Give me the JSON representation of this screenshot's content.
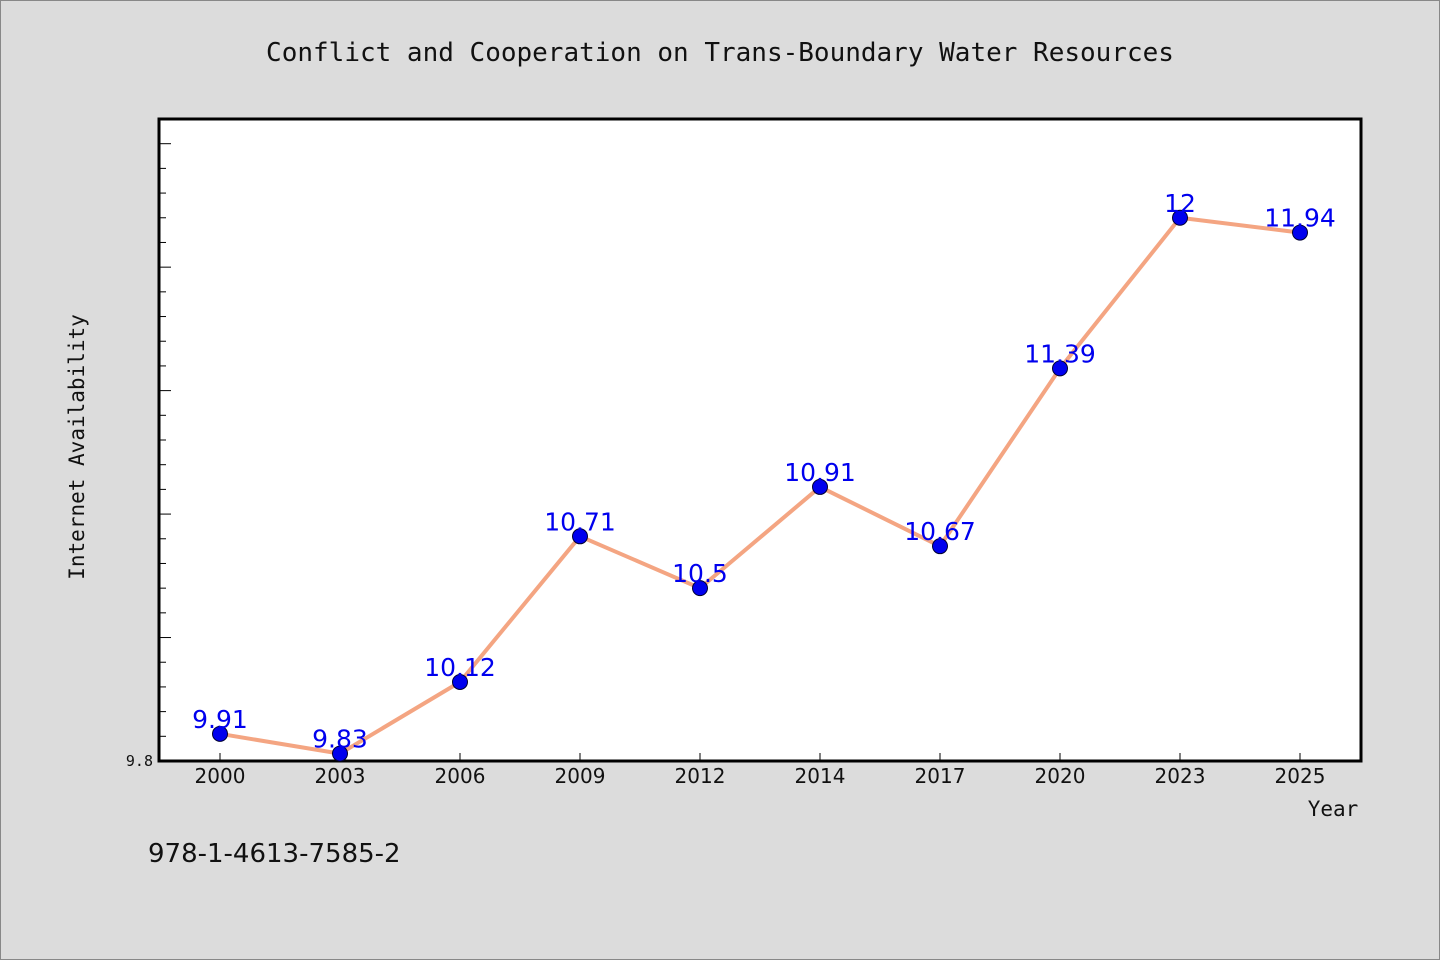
{
  "chart_data": {
    "type": "line",
    "title": "Conflict and Cooperation on Trans-Boundary Water Resources",
    "xlabel": "Year",
    "ylabel": "Internet Availability",
    "categories": [
      "2000",
      "2003",
      "2006",
      "2009",
      "2012",
      "2014",
      "2017",
      "2020",
      "2023",
      "2025"
    ],
    "values": [
      9.91,
      9.83,
      10.12,
      10.71,
      10.5,
      10.91,
      10.67,
      11.39,
      12,
      11.94
    ],
    "data_labels": [
      "9.91",
      "9.83",
      "10.12",
      "10.71",
      "10.5",
      "10.91",
      "10.67",
      "11.39",
      "12",
      "11.94"
    ],
    "ytick_labels": [
      "9.8"
    ],
    "ylim": [
      9.8,
      12.4
    ],
    "grid": false,
    "line_color": "#f4a582",
    "marker_color": "#0000ee",
    "label_color": "#0000ee"
  },
  "footer": {
    "isbn": "978-1-4613-7585-2"
  }
}
